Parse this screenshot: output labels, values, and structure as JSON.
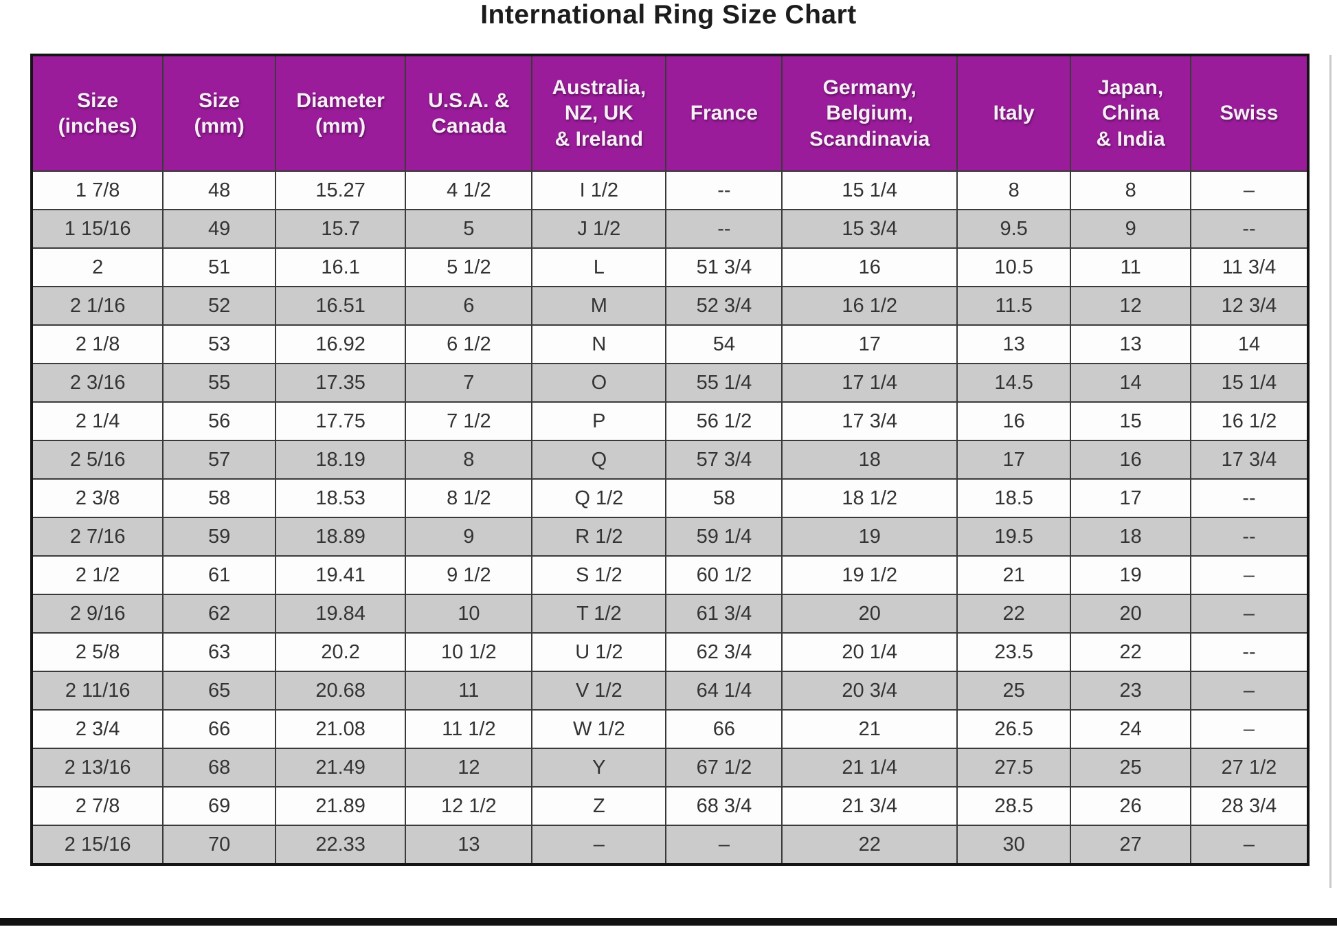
{
  "title": "International Ring Size Chart",
  "chart_data": {
    "type": "table",
    "title": "International Ring Size Chart",
    "columns": [
      "Size\n(inches)",
      "Size\n(mm)",
      "Diameter\n(mm)",
      "U.S.A. &\nCanada",
      "Australia,\nNZ, UK\n& Ireland",
      "France",
      "Germany,\nBelgium,\nScandinavia",
      "Italy",
      "Japan,\nChina\n& India",
      "Swiss"
    ],
    "rows": [
      [
        "1 7/8",
        "48",
        "15.27",
        "4 1/2",
        "I 1/2",
        "--",
        "15 1/4",
        "8",
        "8",
        "–"
      ],
      [
        "1 15/16",
        "49",
        "15.7",
        "5",
        "J 1/2",
        "--",
        "15 3/4",
        "9.5",
        "9",
        "--"
      ],
      [
        "2",
        "51",
        "16.1",
        "5 1/2",
        "L",
        "51 3/4",
        "16",
        "10.5",
        "11",
        "11 3/4"
      ],
      [
        "2 1/16",
        "52",
        "16.51",
        "6",
        "M",
        "52 3/4",
        "16 1/2",
        "11.5",
        "12",
        "12 3/4"
      ],
      [
        "2 1/8",
        "53",
        "16.92",
        "6 1/2",
        "N",
        "54",
        "17",
        "13",
        "13",
        "14"
      ],
      [
        "2 3/16",
        "55",
        "17.35",
        "7",
        "O",
        "55 1/4",
        "17 1/4",
        "14.5",
        "14",
        "15 1/4"
      ],
      [
        "2 1/4",
        "56",
        "17.75",
        "7 1/2",
        "P",
        "56 1/2",
        "17 3/4",
        "16",
        "15",
        "16 1/2"
      ],
      [
        "2 5/16",
        "57",
        "18.19",
        "8",
        "Q",
        "57 3/4",
        "18",
        "17",
        "16",
        "17 3/4"
      ],
      [
        "2 3/8",
        "58",
        "18.53",
        "8 1/2",
        "Q 1/2",
        "58",
        "18 1/2",
        "18.5",
        "17",
        "--"
      ],
      [
        "2 7/16",
        "59",
        "18.89",
        "9",
        "R 1/2",
        "59 1/4",
        "19",
        "19.5",
        "18",
        "--"
      ],
      [
        "2 1/2",
        "61",
        "19.41",
        "9 1/2",
        "S 1/2",
        "60 1/2",
        "19 1/2",
        "21",
        "19",
        "–"
      ],
      [
        "2 9/16",
        "62",
        "19.84",
        "10",
        "T 1/2",
        "61 3/4",
        "20",
        "22",
        "20",
        "–"
      ],
      [
        "2 5/8",
        "63",
        "20.2",
        "10 1/2",
        "U 1/2",
        "62 3/4",
        "20 1/4",
        "23.5",
        "22",
        "--"
      ],
      [
        "2 11/16",
        "65",
        "20.68",
        "11",
        "V 1/2",
        "64 1/4",
        "20 3/4",
        "25",
        "23",
        "–"
      ],
      [
        "2 3/4",
        "66",
        "21.08",
        "11 1/2",
        "W 1/2",
        "66",
        "21",
        "26.5",
        "24",
        "–"
      ],
      [
        "2 13/16",
        "68",
        "21.49",
        "12",
        "Y",
        "67 1/2",
        "21 1/4",
        "27.5",
        "25",
        "27 1/2"
      ],
      [
        "2 7/8",
        "69",
        "21.89",
        "12 1/2",
        "Z",
        "68 3/4",
        "21 3/4",
        "28.5",
        "26",
        "28 3/4"
      ],
      [
        "2 15/16",
        "70",
        "22.33",
        "13",
        "–",
        "–",
        "22",
        "30",
        "27",
        "–"
      ]
    ]
  },
  "colors": {
    "header_background": "#9a1c9a",
    "header_text": "#f6f0f6",
    "row_white": "#fdfdfd",
    "row_gray": "#cbcbcb",
    "grid_line": "#3a3a3a",
    "title_text": "#1c1c1c"
  }
}
